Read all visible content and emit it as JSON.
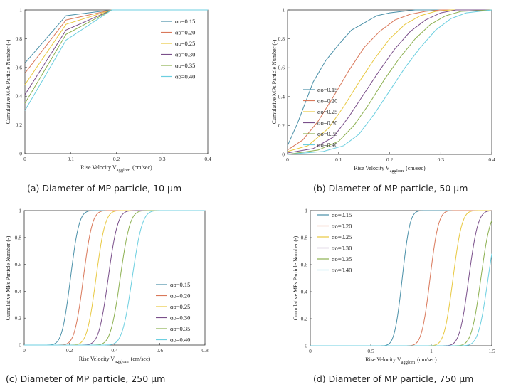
{
  "chart_data": [
    {
      "id": "a",
      "type": "line",
      "caption": "(a) Diameter of MP particle, 10 μm",
      "xlabel": "Rise Velocity V",
      "xlabel_sub": "agglom",
      "xlabel_unit": "(cm/sec)",
      "ylabel": "Cumulative MPs Particle Number (-)",
      "xlim": [
        0,
        0.4
      ],
      "ylim": [
        0,
        1
      ],
      "xticks": [
        "0",
        "0.1",
        "0.2",
        "0.3",
        "0.4"
      ],
      "yticks": [
        "0",
        "0.2",
        "0.4",
        "0.6",
        "0.8",
        "1"
      ],
      "legend": "upper-right",
      "series": [
        {
          "name": "αo=0.15",
          "color": "#4a90a8",
          "x": [
            0,
            0.09,
            0.19
          ],
          "y": [
            0.63,
            0.96,
            1.0
          ]
        },
        {
          "name": "αo=0.20",
          "color": "#d9785a",
          "x": [
            0,
            0.09,
            0.19
          ],
          "y": [
            0.56,
            0.93,
            1.0
          ]
        },
        {
          "name": "αo=0.25",
          "color": "#e8c840",
          "x": [
            0,
            0.09,
            0.19
          ],
          "y": [
            0.48,
            0.9,
            1.0
          ]
        },
        {
          "name": "αo=0.30",
          "color": "#7a4f8a",
          "x": [
            0,
            0.09,
            0.19
          ],
          "y": [
            0.41,
            0.86,
            1.0
          ]
        },
        {
          "name": "αo=0.35",
          "color": "#8cb050",
          "x": [
            0,
            0.09,
            0.19
          ],
          "y": [
            0.35,
            0.83,
            1.0
          ]
        },
        {
          "name": "αo=0.40",
          "color": "#6ccfe0",
          "x": [
            0,
            0.09,
            0.19
          ],
          "y": [
            0.3,
            0.79,
            1.0
          ]
        }
      ]
    },
    {
      "id": "b",
      "type": "line",
      "caption": "(b) Diameter of MP particle, 50 μm",
      "xlabel": "Rise Velocity V",
      "xlabel_sub": "agglom",
      "xlabel_unit": "(cm/sec)",
      "ylabel": "Cumulative MPs Particle Number (-)",
      "xlim": [
        0,
        0.4
      ],
      "ylim": [
        0,
        1
      ],
      "xticks": [
        "0",
        "0.1",
        "0.2",
        "0.3",
        "0.4"
      ],
      "yticks": [
        "0",
        "0.2",
        "0.4",
        "0.6",
        "0.8",
        "1"
      ],
      "legend": "lower-right",
      "series": [
        {
          "name": "αo=0.15",
          "color": "#4a90a8",
          "x": [
            0,
            0.02,
            0.05,
            0.075,
            0.1,
            0.125,
            0.15,
            0.175,
            0.2,
            0.225,
            0.25,
            0.3
          ],
          "y": [
            0.06,
            0.22,
            0.5,
            0.65,
            0.76,
            0.86,
            0.91,
            0.96,
            0.98,
            0.99,
            1.0,
            1.0
          ]
        },
        {
          "name": "αo=0.20",
          "color": "#d9785a",
          "x": [
            0,
            0.03,
            0.06,
            0.09,
            0.12,
            0.15,
            0.18,
            0.21,
            0.24,
            0.27,
            0.3,
            0.33
          ],
          "y": [
            0.03,
            0.1,
            0.23,
            0.4,
            0.58,
            0.74,
            0.85,
            0.93,
            0.97,
            0.99,
            1.0,
            1.0
          ]
        },
        {
          "name": "αo=0.25",
          "color": "#e8c840",
          "x": [
            0,
            0.04,
            0.08,
            0.11,
            0.14,
            0.17,
            0.2,
            0.23,
            0.26,
            0.29,
            0.32,
            0.36
          ],
          "y": [
            0.02,
            0.06,
            0.18,
            0.33,
            0.5,
            0.66,
            0.8,
            0.9,
            0.96,
            0.99,
            1.0,
            1.0
          ]
        },
        {
          "name": "αo=0.30",
          "color": "#7a4f8a",
          "x": [
            0,
            0.05,
            0.09,
            0.12,
            0.15,
            0.18,
            0.21,
            0.24,
            0.27,
            0.3,
            0.33,
            0.38
          ],
          "y": [
            0.01,
            0.04,
            0.12,
            0.26,
            0.42,
            0.58,
            0.73,
            0.85,
            0.93,
            0.98,
            1.0,
            1.0
          ]
        },
        {
          "name": "αo=0.35",
          "color": "#8cb050",
          "x": [
            0,
            0.06,
            0.1,
            0.13,
            0.16,
            0.19,
            0.22,
            0.25,
            0.28,
            0.31,
            0.34,
            0.4
          ],
          "y": [
            0.0,
            0.03,
            0.09,
            0.2,
            0.35,
            0.52,
            0.67,
            0.8,
            0.9,
            0.96,
            0.99,
            1.0
          ]
        },
        {
          "name": "αo=0.40",
          "color": "#6ccfe0",
          "x": [
            0,
            0.07,
            0.11,
            0.14,
            0.17,
            0.2,
            0.23,
            0.26,
            0.29,
            0.32,
            0.35,
            0.4
          ],
          "y": [
            0.0,
            0.02,
            0.06,
            0.14,
            0.28,
            0.44,
            0.6,
            0.74,
            0.86,
            0.94,
            0.98,
            1.0
          ]
        }
      ]
    },
    {
      "id": "c",
      "type": "line",
      "caption": "(c) Diameter of MP particle, 250 μm",
      "xlabel": "Rise Velocity V",
      "xlabel_sub": "agglom",
      "xlabel_unit": "(cm/sec)",
      "ylabel": "Cumulative MPs Particle Number (-)",
      "xlim": [
        0,
        0.8
      ],
      "ylim": [
        0,
        1
      ],
      "xticks": [
        "0",
        "0.2",
        "0.4",
        "0.6",
        "0.8"
      ],
      "yticks": [
        "0",
        "0.2",
        "0.4",
        "0.6",
        "0.8",
        "1"
      ],
      "legend": "lower-right",
      "series": [
        {
          "name": "αo=0.15",
          "color": "#4a90a8",
          "mu": 0.205,
          "sigma": 0.03
        },
        {
          "name": "αo=0.20",
          "color": "#d9785a",
          "mu": 0.262,
          "sigma": 0.031
        },
        {
          "name": "αo=0.25",
          "color": "#e8c840",
          "mu": 0.318,
          "sigma": 0.032
        },
        {
          "name": "αo=0.30",
          "color": "#7a4f8a",
          "mu": 0.372,
          "sigma": 0.033
        },
        {
          "name": "αo=0.35",
          "color": "#8cb050",
          "mu": 0.425,
          "sigma": 0.034
        },
        {
          "name": "αo=0.40",
          "color": "#6ccfe0",
          "mu": 0.478,
          "sigma": 0.035
        }
      ]
    },
    {
      "id": "d",
      "type": "line",
      "caption": "(d) Diameter of MP particle, 750 μm",
      "xlabel": "Rise Velocity V",
      "xlabel_sub": "agglom",
      "xlabel_unit": "(cm/sec)",
      "ylabel": "Cumulative MPs Particle Number (-)",
      "xlim": [
        0,
        1.5
      ],
      "ylim": [
        0,
        1
      ],
      "xticks": [
        "0",
        "0.5",
        "1",
        "1.5"
      ],
      "yticks": [
        "0",
        "0.2",
        "0.4",
        "0.6",
        "0.8",
        "1"
      ],
      "legend": "upper-left",
      "series": [
        {
          "name": "αo=0.15",
          "color": "#4a90a8",
          "mu": 0.76,
          "sigma": 0.05
        },
        {
          "name": "αo=0.20",
          "color": "#d9785a",
          "mu": 0.99,
          "sigma": 0.055
        },
        {
          "name": "αo=0.25",
          "color": "#e8c840",
          "mu": 1.18,
          "sigma": 0.058
        },
        {
          "name": "αo=0.30",
          "color": "#7a4f8a",
          "mu": 1.31,
          "sigma": 0.06
        },
        {
          "name": "αo=0.35",
          "color": "#8cb050",
          "mu": 1.41,
          "sigma": 0.062
        },
        {
          "name": "αo=0.40",
          "color": "#6ccfe0",
          "mu": 1.47,
          "sigma": 0.064
        }
      ]
    }
  ]
}
